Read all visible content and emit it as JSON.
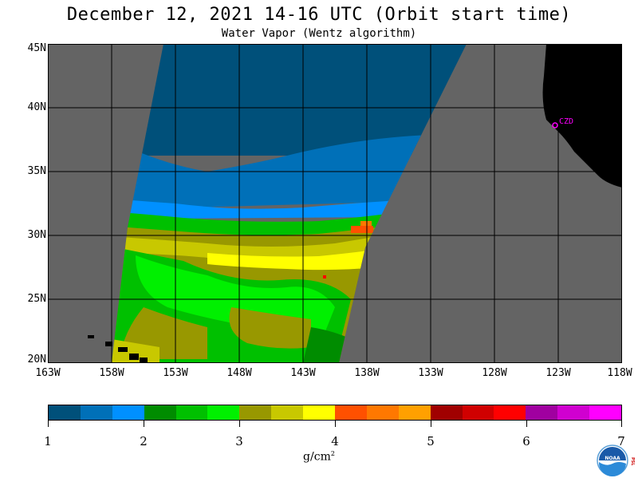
{
  "header": {
    "title": "December 12, 2021  14-16 UTC  (Orbit start time)",
    "subtitle": "Water Vapor (Wentz algorithm)"
  },
  "map": {
    "lat_labels": [
      "45N",
      "40N",
      "35N",
      "30N",
      "25N",
      "20N"
    ],
    "lon_labels": [
      "163W",
      "158W",
      "153W",
      "148W",
      "143W",
      "138W",
      "133W",
      "128W",
      "123W",
      "118W"
    ],
    "station_label": "CZD",
    "colors": {
      "background_no_data": "#646464",
      "land": "#000000",
      "grid": "#000000",
      "station": "#ff00ff"
    }
  },
  "colorbar": {
    "tick_labels": [
      "1",
      "2",
      "3",
      "4",
      "5",
      "6",
      "7"
    ],
    "units_base": "g/cm",
    "units_exp": "2",
    "colors": [
      "#00507a",
      "#0070b8",
      "#0090ff",
      "#008c00",
      "#00c000",
      "#00f000",
      "#989800",
      "#c8c800",
      "#ffff00",
      "#ff5000",
      "#ff7800",
      "#ffa000",
      "#a00000",
      "#d00000",
      "#ff0000",
      "#a000a0",
      "#d000d0",
      "#ff00ff"
    ]
  },
  "logo": {
    "name": "noaa-logo",
    "text": "NOAA",
    "side_text": "PSL"
  }
}
